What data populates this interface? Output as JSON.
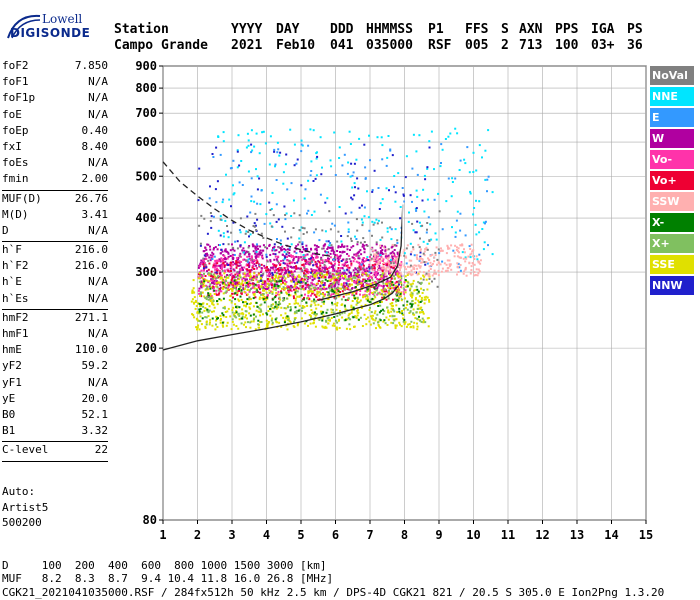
{
  "logo": {
    "line1": "Lowell",
    "line2": "DIGISONDE"
  },
  "header": {
    "labels": [
      {
        "text": "Station"
      },
      {
        "text": "YYYY"
      },
      {
        "text": "DAY"
      },
      {
        "text": "DDD"
      },
      {
        "text": "HHMMSS"
      },
      {
        "text": "P1"
      },
      {
        "text": "FFS"
      },
      {
        "text": "S"
      },
      {
        "text": "AXN"
      },
      {
        "text": "PPS"
      },
      {
        "text": "IGA"
      },
      {
        "text": "PS"
      }
    ],
    "values": [
      {
        "text": "Campo Grande"
      },
      {
        "text": "2021"
      },
      {
        "text": "Feb10"
      },
      {
        "text": "041"
      },
      {
        "text": "035000"
      },
      {
        "text": "RSF"
      },
      {
        "text": "005"
      },
      {
        "text": "2"
      },
      {
        "text": "713"
      },
      {
        "text": "100"
      },
      {
        "text": "03+"
      },
      {
        "text": "36"
      }
    ]
  },
  "params": [
    [
      {
        "k": "foF2",
        "v": "7.850"
      },
      {
        "k": "foF1",
        "v": "N/A"
      },
      {
        "k": "foF1p",
        "v": "N/A"
      },
      {
        "k": "foE",
        "v": "N/A"
      },
      {
        "k": "foEp",
        "v": "0.40"
      },
      {
        "k": "fxI",
        "v": "8.40"
      },
      {
        "k": "foEs",
        "v": "N/A"
      },
      {
        "k": "fmin",
        "v": "2.00"
      }
    ],
    [
      {
        "k": "MUF(D)",
        "v": "26.76"
      },
      {
        "k": "M(D)",
        "v": "3.41"
      },
      {
        "k": "D",
        "v": "N/A"
      }
    ],
    [
      {
        "k": "h`F",
        "v": "216.0"
      },
      {
        "k": "h`F2",
        "v": "216.0"
      },
      {
        "k": "h`E",
        "v": "N/A"
      },
      {
        "k": "h`Es",
        "v": "N/A"
      }
    ],
    [
      {
        "k": "hmF2",
        "v": "271.1"
      },
      {
        "k": "hmF1",
        "v": "N/A"
      },
      {
        "k": "hmE",
        "v": "110.0"
      },
      {
        "k": "yF2",
        "v": "59.2"
      },
      {
        "k": "yF1",
        "v": "N/A"
      },
      {
        "k": "yE",
        "v": "20.0"
      },
      {
        "k": "B0",
        "v": "52.1"
      },
      {
        "k": "B1",
        "v": "3.32"
      }
    ],
    [
      {
        "k": "C-level",
        "v": "22"
      }
    ]
  ],
  "auto": {
    "l1": "Auto:",
    "l2": "Artist5",
    "l3": "500200"
  },
  "legend": [
    {
      "label": "NoVal",
      "color": "#808080"
    },
    {
      "label": "NNE",
      "color": "#00e5ff"
    },
    {
      "label": "E",
      "color": "#3399ff"
    },
    {
      "label": "W",
      "color": "#b000a0"
    },
    {
      "label": "Vo-",
      "color": "#ff33aa"
    },
    {
      "label": "Vo+",
      "color": "#ee0033"
    },
    {
      "label": "SSW",
      "color": "#ffb0b0"
    },
    {
      "label": "X-",
      "color": "#008000"
    },
    {
      "label": "X+",
      "color": "#80c060"
    },
    {
      "label": "SSE",
      "color": "#e0e000"
    },
    {
      "label": "NNW",
      "color": "#2020cc"
    }
  ],
  "footer": {
    "line1": "D     100  200  400  600  800 1000 1500 3000 [km]",
    "line2": "MUF   8.2  8.3  8.7  9.4 10.4 11.8 16.0 26.8 [MHz]",
    "line3": "CGK21_2021041035000.RSF / 284fx512h 50 kHz 2.5 km / DPS-4D CGK21 821 / 20.5 S 305.0 E Ion2Png 1.3.20"
  },
  "chart_data": {
    "type": "scatter",
    "xlim": [
      1,
      15
    ],
    "ylim": [
      80,
      900
    ],
    "yscale": "log",
    "xticks": [
      1,
      2,
      3,
      4,
      5,
      6,
      7,
      8,
      9,
      10,
      11,
      12,
      13,
      14,
      15
    ],
    "yticks": [
      80,
      200,
      300,
      400,
      500,
      600,
      700,
      800,
      900
    ],
    "grid": true,
    "legend_position": "right",
    "vertical_marker": 7.95,
    "series": [
      {
        "style": "solid",
        "x": [
          1.0,
          2.0,
          3.0,
          4.0,
          5.0,
          6.0,
          7.0,
          7.4,
          7.65,
          7.8
        ],
        "y": [
          198,
          208,
          215,
          222,
          230,
          240,
          252,
          260,
          268,
          278
        ]
      },
      {
        "style": "solid",
        "x": [
          5.5,
          6.5,
          7.2,
          7.6,
          7.8,
          7.9,
          7.95
        ],
        "y": [
          258,
          270,
          282,
          292,
          310,
          345,
          430
        ]
      },
      {
        "style": "dashed",
        "x": [
          1.0,
          1.5,
          2.0,
          2.5,
          3.0,
          3.5,
          4.0,
          4.5,
          5.0,
          5.5,
          6.0
        ],
        "y": [
          540,
          485,
          450,
          420,
          395,
          375,
          360,
          347,
          338,
          330,
          325
        ]
      }
    ],
    "scatter_clusters": [
      {
        "color": "#b000a0",
        "xr": [
          2.0,
          7.8
        ],
        "yr": [
          275,
          350
        ],
        "n": 900
      },
      {
        "color": "#ff33aa",
        "xr": [
          2.0,
          8.0
        ],
        "yr": [
          265,
          330
        ],
        "n": 500
      },
      {
        "color": "#ee0033",
        "xr": [
          2.0,
          7.9
        ],
        "yr": [
          260,
          320
        ],
        "n": 250
      },
      {
        "color": "#e0e000",
        "xr": [
          1.8,
          8.7
        ],
        "yr": [
          222,
          300
        ],
        "n": 800
      },
      {
        "color": "#80c060",
        "xr": [
          2.0,
          8.6
        ],
        "yr": [
          228,
          300
        ],
        "n": 300
      },
      {
        "color": "#008000",
        "xr": [
          2.0,
          8.5
        ],
        "yr": [
          230,
          290
        ],
        "n": 150
      },
      {
        "color": "#00e5ff",
        "xr": [
          2.5,
          10.6
        ],
        "yr": [
          320,
          650
        ],
        "n": 220
      },
      {
        "color": "#3399ff",
        "xr": [
          2.2,
          10.5
        ],
        "yr": [
          300,
          600
        ],
        "n": 130
      },
      {
        "color": "#2020cc",
        "xr": [
          2.0,
          9.0
        ],
        "yr": [
          280,
          600
        ],
        "n": 120
      },
      {
        "color": "#ffb0b0",
        "xr": [
          7.0,
          10.2
        ],
        "yr": [
          295,
          350
        ],
        "n": 250
      },
      {
        "color": "#808080",
        "xr": [
          2.0,
          9.0
        ],
        "yr": [
          260,
          420
        ],
        "n": 160
      }
    ]
  }
}
